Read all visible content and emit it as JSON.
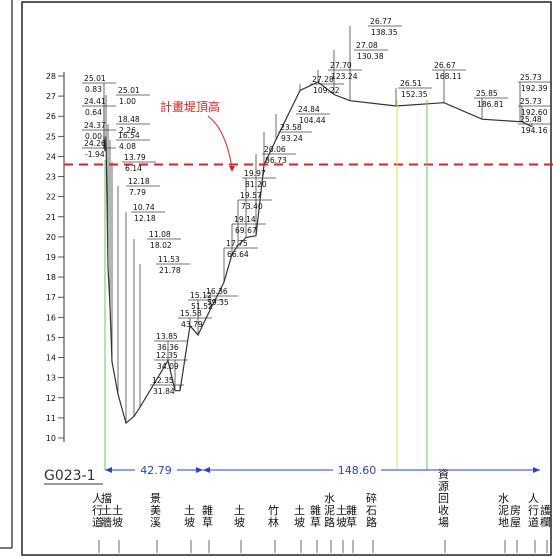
{
  "section": {
    "name": "G023-1",
    "design_level_label": "計畫堤頂高",
    "design_level": 23.6,
    "dim_left": "42.79",
    "dim_right": "148.60"
  },
  "y_axis": {
    "min": 10,
    "max": 28,
    "ticks": [
      "10",
      "11",
      "12",
      "13",
      "14",
      "15",
      "16",
      "17",
      "18",
      "19",
      "20",
      "21",
      "22",
      "23",
      "24",
      "25",
      "26",
      "27",
      "28"
    ]
  },
  "survey_points": [
    {
      "elev": "25.01",
      "off": "0.83"
    },
    {
      "elev": "24.41",
      "off": "0.64"
    },
    {
      "elev": "24.37",
      "off": "0.00"
    },
    {
      "elev": "24.26",
      "off": "-1.94"
    },
    {
      "elev": "25.01",
      "off": "1.00"
    },
    {
      "elev": "18.48",
      "off": "2.26"
    },
    {
      "elev": "16.54",
      "off": "4.08"
    },
    {
      "elev": "13.79",
      "off": "6.14"
    },
    {
      "elev": "12.18",
      "off": "7.79"
    },
    {
      "elev": "10.74",
      "off": "12.18"
    },
    {
      "elev": "11.08",
      "off": "18.02"
    },
    {
      "elev": "11.53",
      "off": "21.78"
    },
    {
      "elev": "13.85",
      "off": "36.36"
    },
    {
      "elev": "12.35",
      "off": "34.09"
    },
    {
      "elev": "12.35",
      "off": "31.84"
    },
    {
      "elev": "15.58",
      "off": "43.79"
    },
    {
      "elev": "15.12",
      "off": "51.52"
    },
    {
      "elev": "16.36",
      "off": "59.35"
    },
    {
      "elev": "17.75",
      "off": "66.64"
    },
    {
      "elev": "19.14",
      "off": "69.67"
    },
    {
      "elev": "19.57",
      "off": "73.40"
    },
    {
      "elev": "19.97",
      "off": "81.20"
    },
    {
      "elev": "20.06",
      "off": "86.73"
    },
    {
      "elev": "23.58",
      "off": "93.24"
    },
    {
      "elev": "24.84",
      "off": "104.44"
    },
    {
      "elev": "27.28",
      "off": "109.22"
    },
    {
      "elev": "27.70",
      "off": "123.24"
    },
    {
      "elev": "27.08",
      "off": "130.38"
    },
    {
      "elev": "26.77",
      "off": "138.35"
    },
    {
      "elev": "26.51",
      "off": "152.35"
    },
    {
      "elev": "26.67",
      "off": "168.11"
    },
    {
      "elev": "25.85",
      "off": "186.81"
    },
    {
      "elev": "25.73",
      "off": "192.39"
    },
    {
      "elev": "25.73",
      "off": "192.60"
    },
    {
      "elev": "25.48",
      "off": "194.16"
    }
  ],
  "legend_items": [
    "人行道",
    "擋土牆",
    "土坡",
    "景美溪",
    "土坡",
    "雜草",
    "土坡",
    "竹林",
    "土坡",
    "雜草",
    "水泥路",
    "土坡",
    "雜草",
    "碎石路",
    "資源回收場",
    "水泥地",
    "房屋",
    "人行道",
    "護欄"
  ]
}
